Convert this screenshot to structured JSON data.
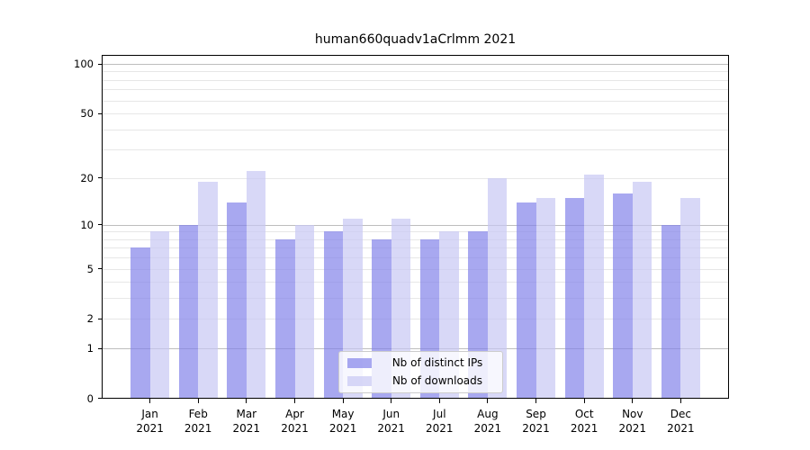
{
  "title": "human660quadv1aCrlmm 2021",
  "chart_data": {
    "type": "bar",
    "title": "human660quadv1aCrlmm 2021",
    "categories": [
      "Jan",
      "Feb",
      "Mar",
      "Apr",
      "May",
      "Jun",
      "Jul",
      "Aug",
      "Sep",
      "Oct",
      "Nov",
      "Dec"
    ],
    "x_tick_line2": "2021",
    "series": [
      {
        "name": "Nb of distinct IPs",
        "color": "rgba(131,131,234,0.7)",
        "color_hex": "#a8a8f0",
        "values": [
          7,
          10,
          14,
          8,
          9,
          8,
          8,
          9,
          14,
          15,
          16,
          10
        ]
      },
      {
        "name": "Nb of downloads",
        "color": "rgba(199,199,243,0.7)",
        "color_hex": "#d8d8f7",
        "values": [
          9,
          19,
          22,
          10,
          11,
          11,
          9,
          20,
          15,
          21,
          19,
          15
        ]
      }
    ],
    "yscale": "log1p",
    "ylim": [
      0,
      100
    ],
    "ytick_labels": [
      100,
      50,
      20,
      10,
      5,
      2,
      1,
      0
    ],
    "major_gridlines": [
      1,
      10,
      100
    ],
    "minor_gridlines": [
      2,
      3,
      4,
      5,
      6,
      7,
      8,
      9,
      20,
      30,
      40,
      50,
      60,
      70,
      80,
      90
    ],
    "legend": {
      "entries": [
        "Nb of distinct IPs",
        "Nb of downloads"
      ],
      "position": "lower-center"
    },
    "grid": true
  },
  "colors": {
    "background": "#ffffff",
    "spine": "#000000",
    "major_grid": "#bdbdbd",
    "minor_grid": "#e7e7e7",
    "text": "#000000",
    "legend_border": "#cccccc",
    "legend_background": "rgba(255,255,255,0.8)"
  }
}
